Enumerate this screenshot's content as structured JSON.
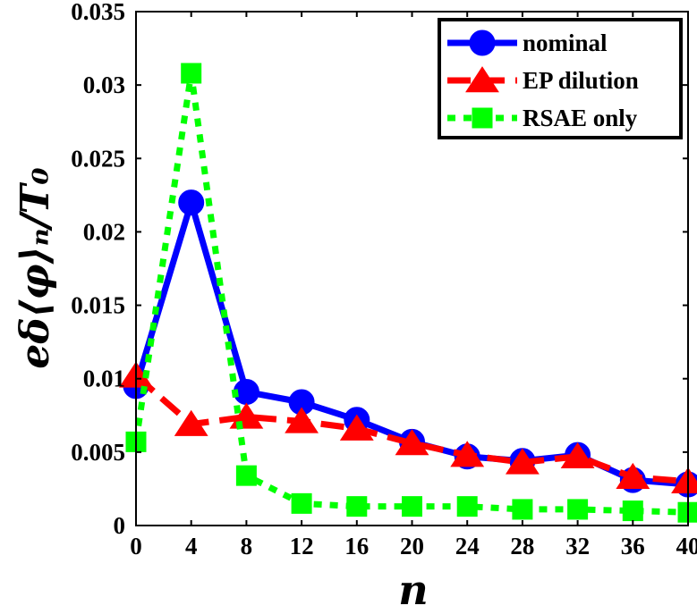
{
  "chart_data": {
    "type": "line",
    "xlabel": "n",
    "ylabel": "eδ⟨φ⟩ₙ/T₀",
    "xlim": [
      0,
      40
    ],
    "ylim": [
      0,
      0.035
    ],
    "x_ticks": [
      "0",
      "4",
      "8",
      "12",
      "16",
      "20",
      "24",
      "28",
      "32",
      "36",
      "40"
    ],
    "y_ticks": [
      "0",
      "0.005",
      "0.01",
      "0.015",
      "0.02",
      "0.025",
      "0.03",
      "0.035"
    ],
    "x": [
      0,
      4,
      8,
      12,
      16,
      20,
      24,
      28,
      32,
      36,
      40
    ],
    "grid": false,
    "legend_position": "top-right",
    "series": [
      {
        "name": "nominal",
        "color": "#0000ff",
        "marker": "circle",
        "line_style": "solid",
        "values": [
          0.0095,
          0.022,
          0.0091,
          0.0084,
          0.0072,
          0.0057,
          0.0047,
          0.0044,
          0.0048,
          0.0031,
          0.0028
        ]
      },
      {
        "name": "EP dilution",
        "color": "#ff0000",
        "marker": "triangle",
        "line_style": "dashed",
        "values": [
          0.0102,
          0.0069,
          0.0074,
          0.0071,
          0.0066,
          0.0056,
          0.0048,
          0.0043,
          0.0047,
          0.0033,
          0.003
        ]
      },
      {
        "name": "RSAE only",
        "color": "#00ff00",
        "marker": "square",
        "line_style": "dotted",
        "values": [
          0.0057,
          0.0308,
          0.0034,
          0.0015,
          0.0013,
          0.0013,
          0.0013,
          0.0011,
          0.0011,
          0.001,
          0.0009
        ]
      }
    ]
  }
}
